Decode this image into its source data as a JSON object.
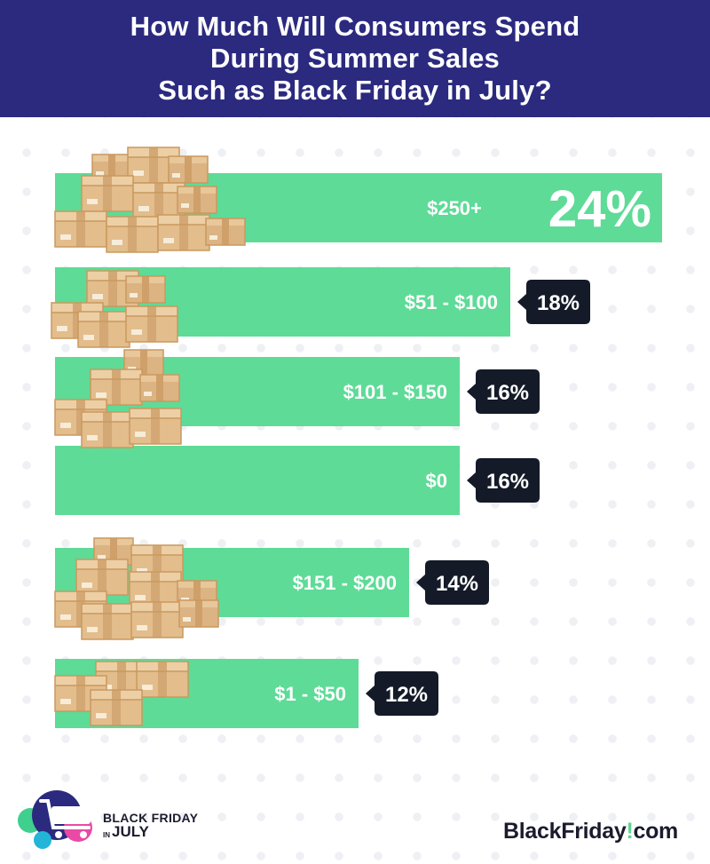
{
  "header": {
    "lines": [
      "How Much Will Consumers Spend",
      "During Summer Sales",
      "Such as Black Friday in July?"
    ]
  },
  "chart_data": {
    "type": "bar",
    "orientation": "horizontal",
    "categories": [
      "$250+",
      "$51 - $100",
      "$101 - $150",
      "$0",
      "$151 - $200",
      "$1 - $50"
    ],
    "values": [
      24,
      18,
      16,
      16,
      14,
      12
    ],
    "value_labels": [
      "24%",
      "18%",
      "16%",
      "16%",
      "14%",
      "12%"
    ],
    "unit": "%",
    "title": "How Much Will Consumers Spend During Summer Sales Such as Black Friday in July?",
    "xlabel": "",
    "ylabel": "",
    "grid": false,
    "legend": "none",
    "colors": {
      "bar": "#5edb97",
      "bar_shadow": "#4cc583",
      "badge": "#141a28",
      "text": "#ffffff"
    }
  },
  "footer": {
    "campaign_logo": {
      "line1": "BLACK FRIDAY",
      "in": "IN",
      "line2": "JULY"
    },
    "brand": {
      "name": "BlackFriday",
      "dot": "!",
      "tld": "com"
    }
  },
  "colors": {
    "header_bg": "#2b2a7f",
    "header_text": "#ffffff",
    "dots": "#eef0f4"
  }
}
